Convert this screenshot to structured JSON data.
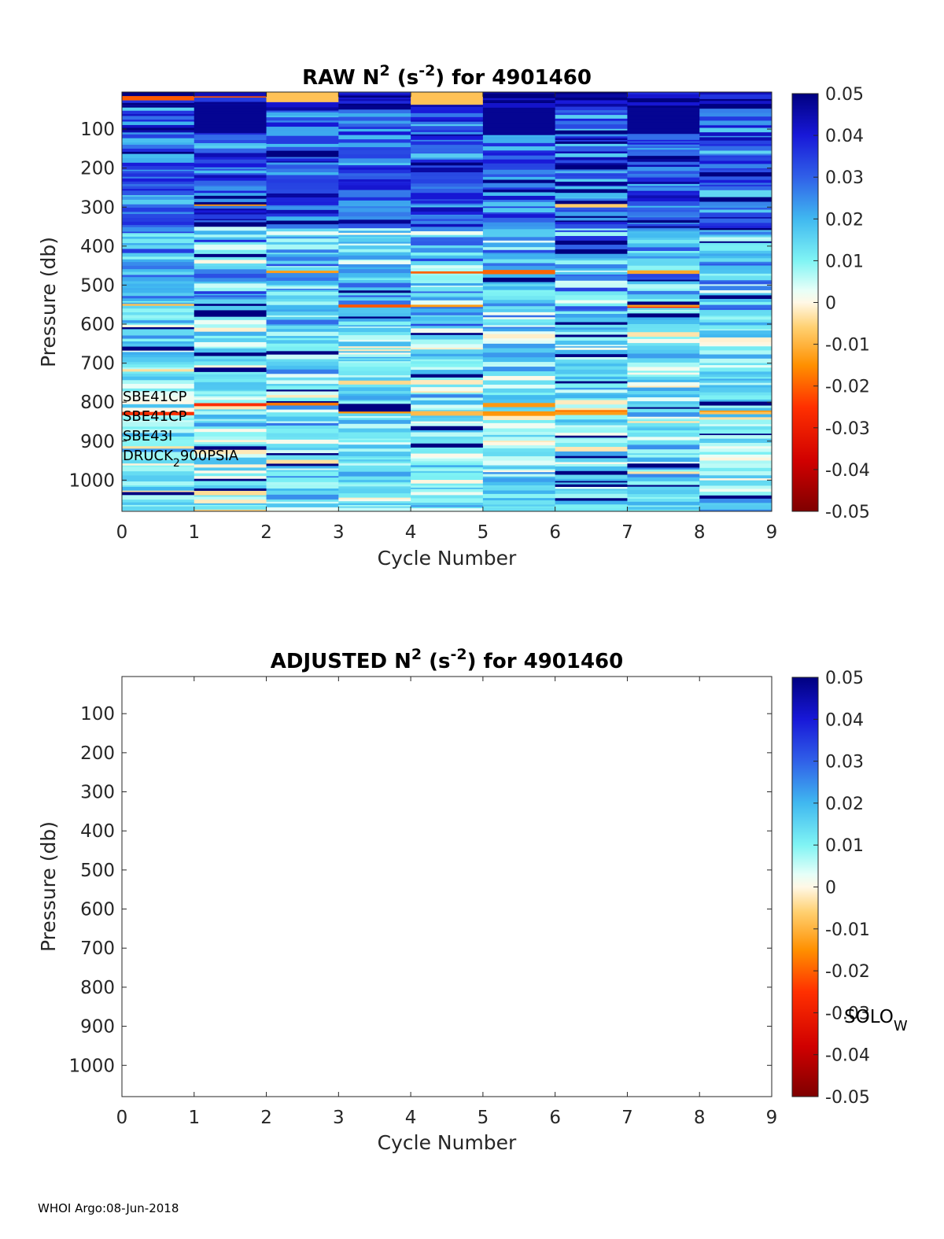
{
  "chart_data": [
    {
      "type": "heatmap",
      "title_main": "RAW N",
      "title_sup1": "2",
      "title_mid": " (s",
      "title_sup2": "-2",
      "title_end": ") for 4901460",
      "xlabel": "Cycle Number",
      "ylabel": "Pressure (db)",
      "xlim": [
        0,
        9
      ],
      "ylim": [
        1080,
        5
      ],
      "x_ticks": [
        "0",
        "1",
        "2",
        "3",
        "4",
        "5",
        "6",
        "7",
        "8",
        "9"
      ],
      "y_ticks": [
        "100",
        "200",
        "300",
        "400",
        "500",
        "600",
        "700",
        "800",
        "900",
        "1000"
      ],
      "colorbar": {
        "clim": [
          -0.05,
          0.05
        ],
        "ticks": [
          "0.05",
          "0.04",
          "0.03",
          "0.02",
          "0.01",
          "0",
          "-0.01",
          "-0.02",
          "-0.03",
          "-0.04",
          "-0.05"
        ],
        "colormap": [
          "#7f0000",
          "#ff0000",
          "#ff8000",
          "#ffc040",
          "#fff2d6",
          "#d8fff8",
          "#66f2f2",
          "#3c9fef",
          "#2020e0",
          "#000080"
        ]
      },
      "cycles": [
        0,
        1,
        2,
        3,
        4,
        5,
        6,
        7,
        8
      ],
      "description": "Banded N² profiles per cycle: mostly positive 0–0.05 s⁻², strongest (dark blue) in upper 350 db, weaker cyan/pale below 600 db; sparse small negative (yellow/orange) layers near 10–20, 290, 460, 550, 800 db.",
      "annotations": [
        "SBE41CP",
        "SBE41CP",
        "SBE43I",
        "DRUCK",
        "2",
        "900PSIA"
      ]
    },
    {
      "type": "heatmap",
      "title_main": "ADJUSTED N",
      "title_sup1": "2",
      "title_mid": " (s",
      "title_sup2": "-2",
      "title_end": ") for 4901460",
      "xlabel": "Cycle Number",
      "ylabel": "Pressure (db)",
      "xlim": [
        0,
        9
      ],
      "ylim": [
        1080,
        5
      ],
      "x_ticks": [
        "0",
        "1",
        "2",
        "3",
        "4",
        "5",
        "6",
        "7",
        "8",
        "9"
      ],
      "y_ticks": [
        "100",
        "200",
        "300",
        "400",
        "500",
        "600",
        "700",
        "800",
        "900",
        "1000"
      ],
      "colorbar": {
        "clim": [
          -0.05,
          0.05
        ],
        "ticks": [
          "0.05",
          "0.04",
          "0.03",
          "0.02",
          "0.01",
          "0",
          "-0.01",
          "-0.02",
          "-0.03",
          "-0.04",
          "-0.05"
        ]
      },
      "empty": true,
      "side_label": "SOLO",
      "side_label_sub": "W"
    }
  ],
  "footer": "WHOI Argo:08-Jun-2018"
}
